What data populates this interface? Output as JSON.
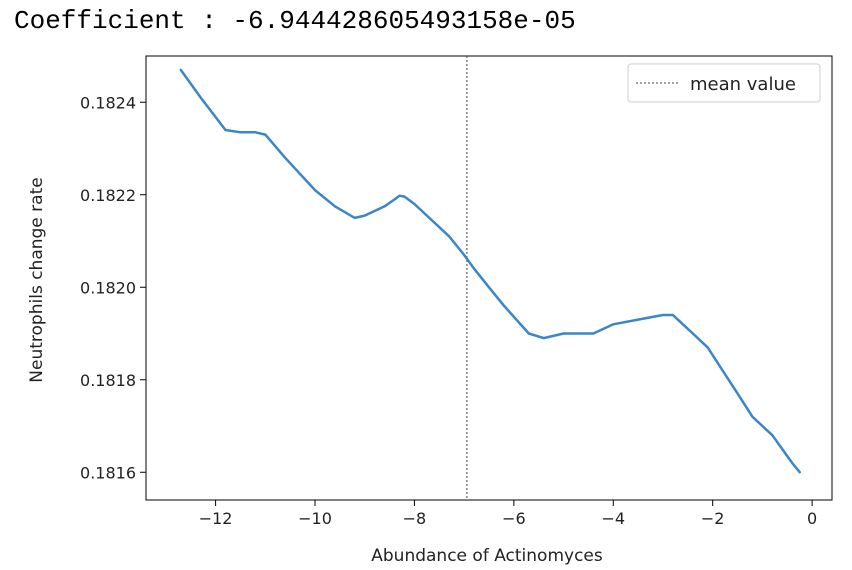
{
  "header": {
    "coefficient_label": "Coefficient : -6.944428605493158e-05"
  },
  "chart_data": {
    "type": "line",
    "title": "",
    "xlabel": "Abundance of Actinomyces",
    "ylabel": "Neutrophils change rate",
    "xlim": [
      -13.4,
      0.4
    ],
    "ylim": [
      0.18154,
      0.1825
    ],
    "xticks": [
      -12,
      -10,
      -8,
      -6,
      -4,
      -2,
      0
    ],
    "xtick_labels": [
      "−12",
      "−10",
      "−8",
      "−6",
      "−4",
      "−2",
      "0"
    ],
    "yticks": [
      0.1816,
      0.1818,
      0.182,
      0.1822,
      0.1824
    ],
    "ytick_labels": [
      "0.1816",
      "0.1818",
      "0.1820",
      "0.1822",
      "0.1824"
    ],
    "series": [
      {
        "color": "#3a86c8",
        "x": [
          -12.7,
          -12.3,
          -11.8,
          -11.5,
          -11.2,
          -11.0,
          -10.6,
          -10.0,
          -9.6,
          -9.2,
          -9.0,
          -8.6,
          -8.4,
          -8.3,
          -8.2,
          -8.0,
          -7.6,
          -7.3,
          -7.0,
          -6.8,
          -6.5,
          -6.2,
          -5.7,
          -5.4,
          -5.0,
          -4.4,
          -4.0,
          -3.5,
          -3.0,
          -2.8,
          -2.6,
          -2.4,
          -2.1,
          -1.8,
          -1.5,
          -1.2,
          -1.0,
          -0.8,
          -0.6,
          -0.4,
          -0.25
        ],
        "values": [
          0.18247,
          0.18241,
          0.18234,
          0.182335,
          0.182335,
          0.18233,
          0.18228,
          0.18221,
          0.182175,
          0.18215,
          0.182155,
          0.182175,
          0.18219,
          0.182198,
          0.182196,
          0.18218,
          0.18214,
          0.18211,
          0.18207,
          0.18204,
          0.182,
          0.18196,
          0.1819,
          0.18189,
          0.1819,
          0.1819,
          0.18192,
          0.18193,
          0.18194,
          0.18194,
          0.18192,
          0.1819,
          0.18187,
          0.18182,
          0.18177,
          0.18172,
          0.1817,
          0.18168,
          0.18165,
          0.18162,
          0.1816
        ]
      }
    ],
    "annotations": [
      {
        "type": "vline",
        "x": -6.944428605493158,
        "style": "dashed",
        "color": "#444444",
        "label": "mean value"
      }
    ],
    "legend": {
      "placement": "top-right",
      "entries": [
        "mean value"
      ]
    },
    "grid": false
  }
}
